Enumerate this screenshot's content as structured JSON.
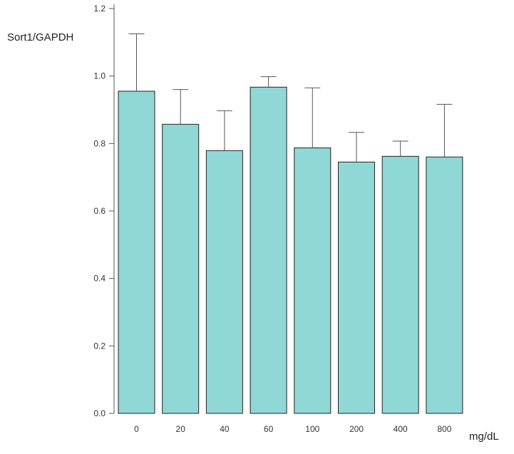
{
  "chart_data": {
    "type": "bar",
    "title": "",
    "ylabel": "Sort1/GAPDH",
    "xlabel": "mg/dL",
    "categories": [
      "0",
      "20",
      "40",
      "60",
      "100",
      "200",
      "400",
      "800"
    ],
    "values": [
      0.955,
      0.857,
      0.779,
      0.967,
      0.787,
      0.745,
      0.762,
      0.76
    ],
    "error_upper": [
      1.125,
      0.96,
      0.897,
      0.998,
      0.965,
      0.833,
      0.807,
      0.916
    ],
    "ylim": [
      0,
      1.2
    ],
    "yticks": [
      "0.0",
      "0.2",
      "0.4",
      "0.6",
      "0.8",
      "1.0",
      "1.2"
    ],
    "ytick_values": [
      0,
      0.2,
      0.4,
      0.6,
      0.8,
      1.0,
      1.2
    ],
    "bar_color": "#8fd8d6",
    "grid": false,
    "legend": "none"
  }
}
